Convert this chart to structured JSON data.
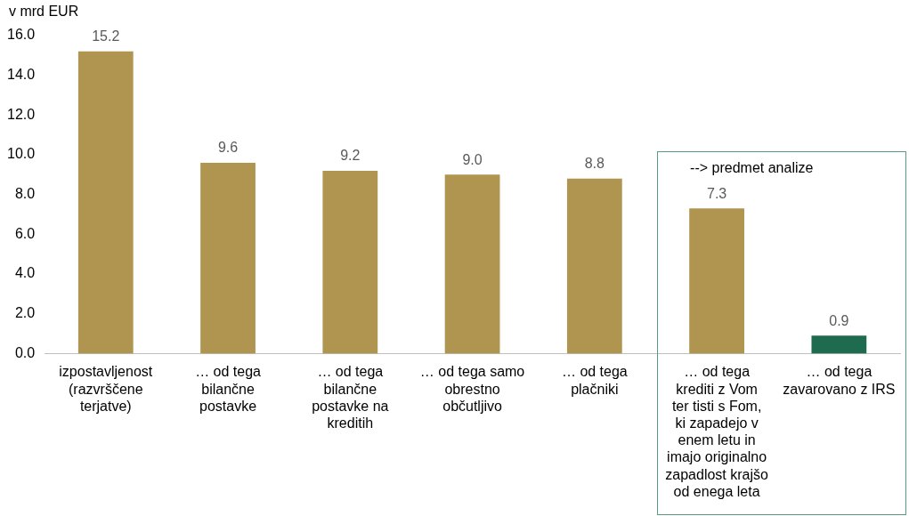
{
  "chart_data": {
    "type": "bar",
    "ylabel": "v mrd EUR",
    "categories": [
      "izpostavljenost (razvrščene terjatve)",
      "… od tega bilančne postavke",
      "… od tega bilančne postavke na kreditih",
      "… od tega samo obrestno občutljivo",
      "… od tega plačniki",
      "… od tega krediti z Vom ter tisti s Fom, ki zapadejo v enem letu in imajo originalno zapadlost krajšo od enega leta",
      "… od tega zavarovano z IRS"
    ],
    "values": [
      15.2,
      9.6,
      9.2,
      9.0,
      8.8,
      7.3,
      0.9
    ],
    "colors": [
      "#b09550",
      "#b09550",
      "#b09550",
      "#b09550",
      "#b09550",
      "#b09550",
      "#1e6b4f"
    ],
    "ylim": [
      0,
      16
    ],
    "yticks": [
      {
        "value": 0,
        "label": "0.0"
      },
      {
        "value": 2,
        "label": "2.0"
      },
      {
        "value": 4,
        "label": "4.0"
      },
      {
        "value": 6,
        "label": "6.0"
      },
      {
        "value": 8,
        "label": "8.0"
      },
      {
        "value": 10,
        "label": "10.0"
      },
      {
        "value": 12,
        "label": "12.0"
      },
      {
        "value": 14,
        "label": "14.0"
      },
      {
        "value": 16,
        "label": "16.0"
      }
    ],
    "value_labels": [
      "15.2",
      "9.6",
      "9.2",
      "9.0",
      "8.8",
      "7.3",
      "0.9"
    ],
    "grid": false,
    "legend": false,
    "annotations": [
      "--> predmet analize"
    ]
  }
}
